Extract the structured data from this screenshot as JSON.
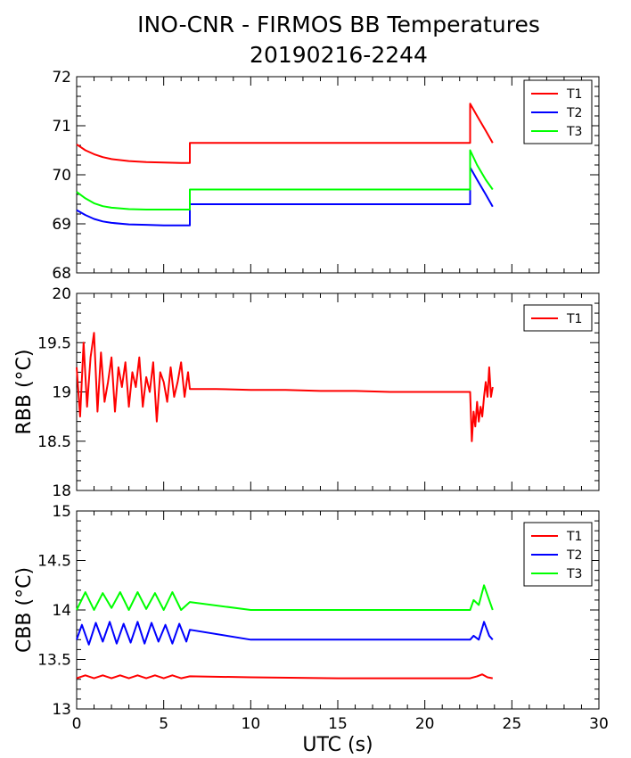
{
  "title_line1": "INO-CNR - FIRMOS BB Temperatures",
  "title_line2": "20190216-2244",
  "colors": {
    "T1": "#ff0000",
    "T2": "#0000ff",
    "T3": "#00ff00"
  },
  "chart_data": [
    {
      "type": "line",
      "ylabel": "",
      "xlim": [
        0,
        30
      ],
      "ylim": [
        68,
        72
      ],
      "yticks": [
        "68",
        "69",
        "70",
        "71",
        "72"
      ],
      "legend": "top-right",
      "series": [
        {
          "name": "T1",
          "x": [
            0,
            0.5,
            1,
            1.5,
            2,
            3,
            4,
            5,
            6,
            6.5,
            6.5,
            22.6,
            22.6,
            23,
            23.5,
            23.9
          ],
          "y": [
            70.62,
            70.5,
            70.42,
            70.36,
            70.32,
            70.28,
            70.26,
            70.25,
            70.24,
            70.24,
            70.65,
            70.65,
            71.45,
            71.2,
            70.9,
            70.65
          ]
        },
        {
          "name": "T2",
          "x": [
            0,
            0.5,
            1,
            1.5,
            2,
            3,
            4,
            5,
            6,
            6.5,
            6.5,
            22.6,
            22.6,
            23,
            23.5,
            23.9
          ],
          "y": [
            69.28,
            69.18,
            69.1,
            69.05,
            69.02,
            68.99,
            68.98,
            68.97,
            68.97,
            68.97,
            69.4,
            69.4,
            70.15,
            69.9,
            69.6,
            69.35
          ]
        },
        {
          "name": "T3",
          "x": [
            0,
            0.5,
            1,
            1.5,
            2,
            3,
            4,
            5,
            6,
            6.5,
            6.5,
            22.6,
            22.6,
            23,
            23.5,
            23.9
          ],
          "y": [
            69.65,
            69.52,
            69.42,
            69.36,
            69.33,
            69.3,
            69.29,
            69.29,
            69.29,
            69.29,
            69.7,
            69.7,
            70.5,
            70.2,
            69.9,
            69.7
          ]
        }
      ]
    },
    {
      "type": "line",
      "ylabel": "RBB (°C)",
      "xlim": [
        0,
        30
      ],
      "ylim": [
        18,
        20
      ],
      "yticks": [
        "18",
        "18.5",
        "19",
        "19.5",
        "20"
      ],
      "legend": "top-right",
      "series": [
        {
          "name": "T1",
          "x": [
            0,
            0.2,
            0.4,
            0.6,
            0.8,
            1,
            1.2,
            1.4,
            1.6,
            1.8,
            2,
            2.2,
            2.4,
            2.6,
            2.8,
            3,
            3.2,
            3.4,
            3.6,
            3.8,
            4,
            4.2,
            4.4,
            4.6,
            4.8,
            5,
            5.2,
            5.4,
            5.6,
            5.8,
            6,
            6.2,
            6.4,
            6.5,
            8,
            10,
            12,
            14,
            16,
            18,
            20,
            22,
            22.6,
            22.7,
            22.8,
            22.9,
            23,
            23.1,
            23.2,
            23.3,
            23.4,
            23.5,
            23.6,
            23.7,
            23.8,
            23.9
          ],
          "y": [
            19.25,
            18.75,
            19.5,
            18.85,
            19.35,
            19.6,
            18.8,
            19.4,
            18.9,
            19.1,
            19.35,
            18.8,
            19.25,
            19.05,
            19.3,
            18.85,
            19.2,
            19.05,
            19.35,
            18.85,
            19.15,
            19.0,
            19.3,
            18.7,
            19.2,
            19.1,
            18.9,
            19.25,
            18.95,
            19.1,
            19.3,
            18.95,
            19.2,
            19.03,
            19.03,
            19.02,
            19.02,
            19.01,
            19.01,
            19.0,
            19.0,
            19.0,
            19.0,
            18.5,
            18.8,
            18.65,
            18.9,
            18.7,
            18.85,
            18.75,
            18.95,
            19.1,
            18.95,
            19.25,
            18.95,
            19.05
          ]
        }
      ]
    },
    {
      "type": "line",
      "ylabel": "CBB (°C)",
      "xlabel": "UTC (s)",
      "xlim": [
        0,
        30
      ],
      "ylim": [
        13,
        15
      ],
      "yticks": [
        "13",
        "13.5",
        "14",
        "14.5",
        "15"
      ],
      "xticks": [
        "0",
        "5",
        "10",
        "15",
        "20",
        "25",
        "30"
      ],
      "legend": "top-right",
      "series": [
        {
          "name": "T1",
          "x": [
            0,
            0.5,
            1,
            1.5,
            2,
            2.5,
            3,
            3.5,
            4,
            4.5,
            5,
            5.5,
            6,
            6.5,
            10,
            15,
            20,
            22.6,
            23,
            23.3,
            23.6,
            23.9
          ],
          "y": [
            13.31,
            13.34,
            13.31,
            13.34,
            13.31,
            13.34,
            13.31,
            13.34,
            13.31,
            13.34,
            13.31,
            13.34,
            13.31,
            13.33,
            13.32,
            13.31,
            13.31,
            13.31,
            13.33,
            13.35,
            13.32,
            13.31
          ]
        },
        {
          "name": "T2",
          "x": [
            0,
            0.3,
            0.7,
            1.1,
            1.5,
            1.9,
            2.3,
            2.7,
            3.1,
            3.5,
            3.9,
            4.3,
            4.7,
            5.1,
            5.5,
            5.9,
            6.3,
            6.5,
            10,
            15,
            20,
            22.6,
            22.8,
            23.1,
            23.4,
            23.7,
            23.9
          ],
          "y": [
            13.7,
            13.85,
            13.65,
            13.87,
            13.68,
            13.88,
            13.66,
            13.86,
            13.67,
            13.88,
            13.66,
            13.87,
            13.68,
            13.85,
            13.66,
            13.86,
            13.68,
            13.8,
            13.7,
            13.7,
            13.7,
            13.7,
            13.74,
            13.7,
            13.88,
            13.74,
            13.7
          ]
        },
        {
          "name": "T3",
          "x": [
            0,
            0.5,
            1,
            1.5,
            2,
            2.5,
            3,
            3.5,
            4,
            4.5,
            5,
            5.5,
            6,
            6.5,
            10,
            15,
            20,
            22.6,
            22.8,
            23.1,
            23.4,
            23.7,
            23.9
          ],
          "y": [
            14.0,
            14.18,
            14.0,
            14.17,
            14.02,
            14.18,
            14.0,
            14.18,
            14.01,
            14.17,
            14.0,
            14.18,
            14.0,
            14.08,
            14.0,
            14.0,
            14.0,
            14.0,
            14.1,
            14.05,
            14.25,
            14.1,
            14.0
          ]
        }
      ]
    }
  ]
}
